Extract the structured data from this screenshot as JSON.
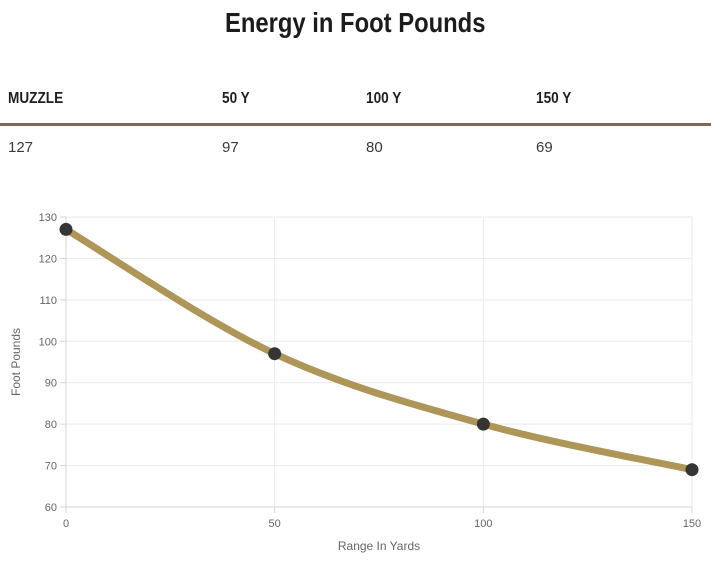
{
  "page": {
    "title": "Energy in Foot Pounds"
  },
  "table": {
    "headers": [
      "MUZZLE",
      "50 Y",
      "100 Y",
      "150 Y"
    ],
    "values": [
      "127",
      "97",
      "80",
      "69"
    ],
    "divider_color": "#7d6c44"
  },
  "chart_data": {
    "type": "line",
    "x": [
      0,
      50,
      100,
      150
    ],
    "series": [
      {
        "name": "Energy in Foot Pounds",
        "values": [
          127,
          97,
          80,
          69
        ]
      }
    ],
    "xlabel": "Range In Yards",
    "ylabel": "Foot Pounds",
    "xlim": [
      0,
      150
    ],
    "ylim": [
      60,
      130
    ],
    "ytick_step": 10,
    "xticks": [
      0,
      50,
      100,
      150
    ],
    "grid": true,
    "legend": "none",
    "colors": {
      "line": "#ad9657",
      "marker": "#353535",
      "grid": "#e9e9e9",
      "axis": "#d4d4d4",
      "tick_label": "#666666",
      "axis_title": "#666666"
    }
  }
}
